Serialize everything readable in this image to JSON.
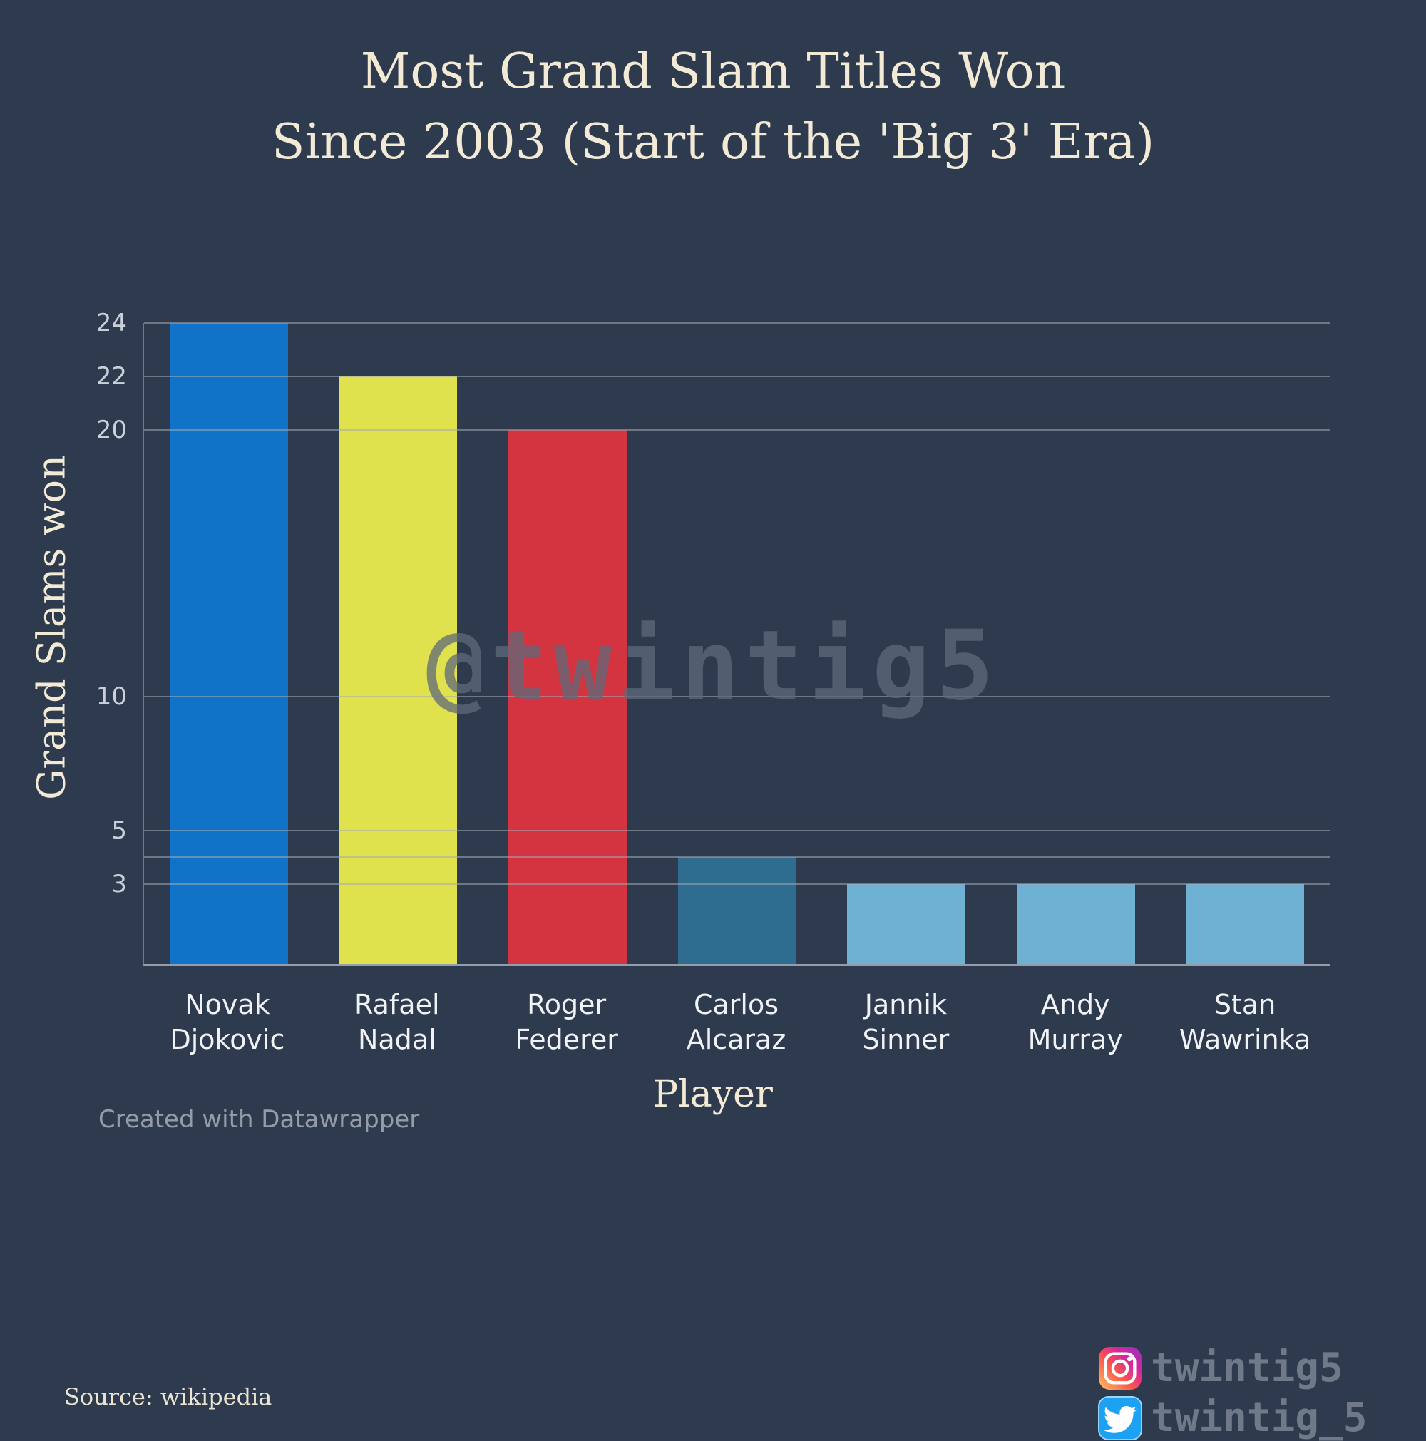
{
  "header": {
    "title_lines": [
      "Most Grand Slam Titles Won",
      "Since 2003 (Start of the 'Big 3' Era)"
    ]
  },
  "chart_data": {
    "type": "bar",
    "title": "Most Grand Slam Titles Won Since 2003 (Start of the 'Big 3' Era)",
    "xlabel": "Player",
    "ylabel": "Grand Slams won",
    "ylim": [
      0,
      24
    ],
    "grid": true,
    "legend": false,
    "categories": [
      "Novak Djokovic",
      "Rafael Nadal",
      "Roger Federer",
      "Carlos Alcaraz",
      "Jannik Sinner",
      "Andy Murray",
      "Stan Wawrinka"
    ],
    "values": [
      24,
      22,
      20,
      4,
      3,
      3,
      3
    ],
    "bar_colors": [
      "#1173c8",
      "#dfe14d",
      "#d43440",
      "#2e6d90",
      "#6fb1d2",
      "#6fb1d2",
      "#6fb1d2"
    ],
    "category_label_lines": [
      [
        "Novak",
        "Djokovic"
      ],
      [
        "Rafael Nadal"
      ],
      [
        "Roger",
        "Federer"
      ],
      [
        "Carlos",
        "Alcaraz"
      ],
      [
        "Jannik",
        "Sinner"
      ],
      [
        "Andy Murray"
      ],
      [
        "Stan",
        "Wawrinka"
      ]
    ],
    "yticks": [
      {
        "value": 3,
        "label": "3"
      },
      {
        "value": 4,
        "label": ""
      },
      {
        "value": 5,
        "label": "5"
      },
      {
        "value": 10,
        "label": "10"
      },
      {
        "value": 20,
        "label": "20"
      },
      {
        "value": 22,
        "label": "22"
      },
      {
        "value": 24,
        "label": "24"
      }
    ]
  },
  "watermark": "@twintig5",
  "footer": {
    "credit": "Created with Datawrapper",
    "source": "Source: wikipedia"
  },
  "social": {
    "instagram_handle": "twintig5",
    "twitter_handle": "twintig_5"
  },
  "colors": {
    "background": "#2e3b4f",
    "title_text": "#f3ead6",
    "gridline": "#a0a9b7",
    "instagram_gradient": [
      "#fdf497",
      "#fd5949",
      "#d6249f",
      "#285AEB"
    ],
    "twitter_blue": "#1da1f2"
  }
}
